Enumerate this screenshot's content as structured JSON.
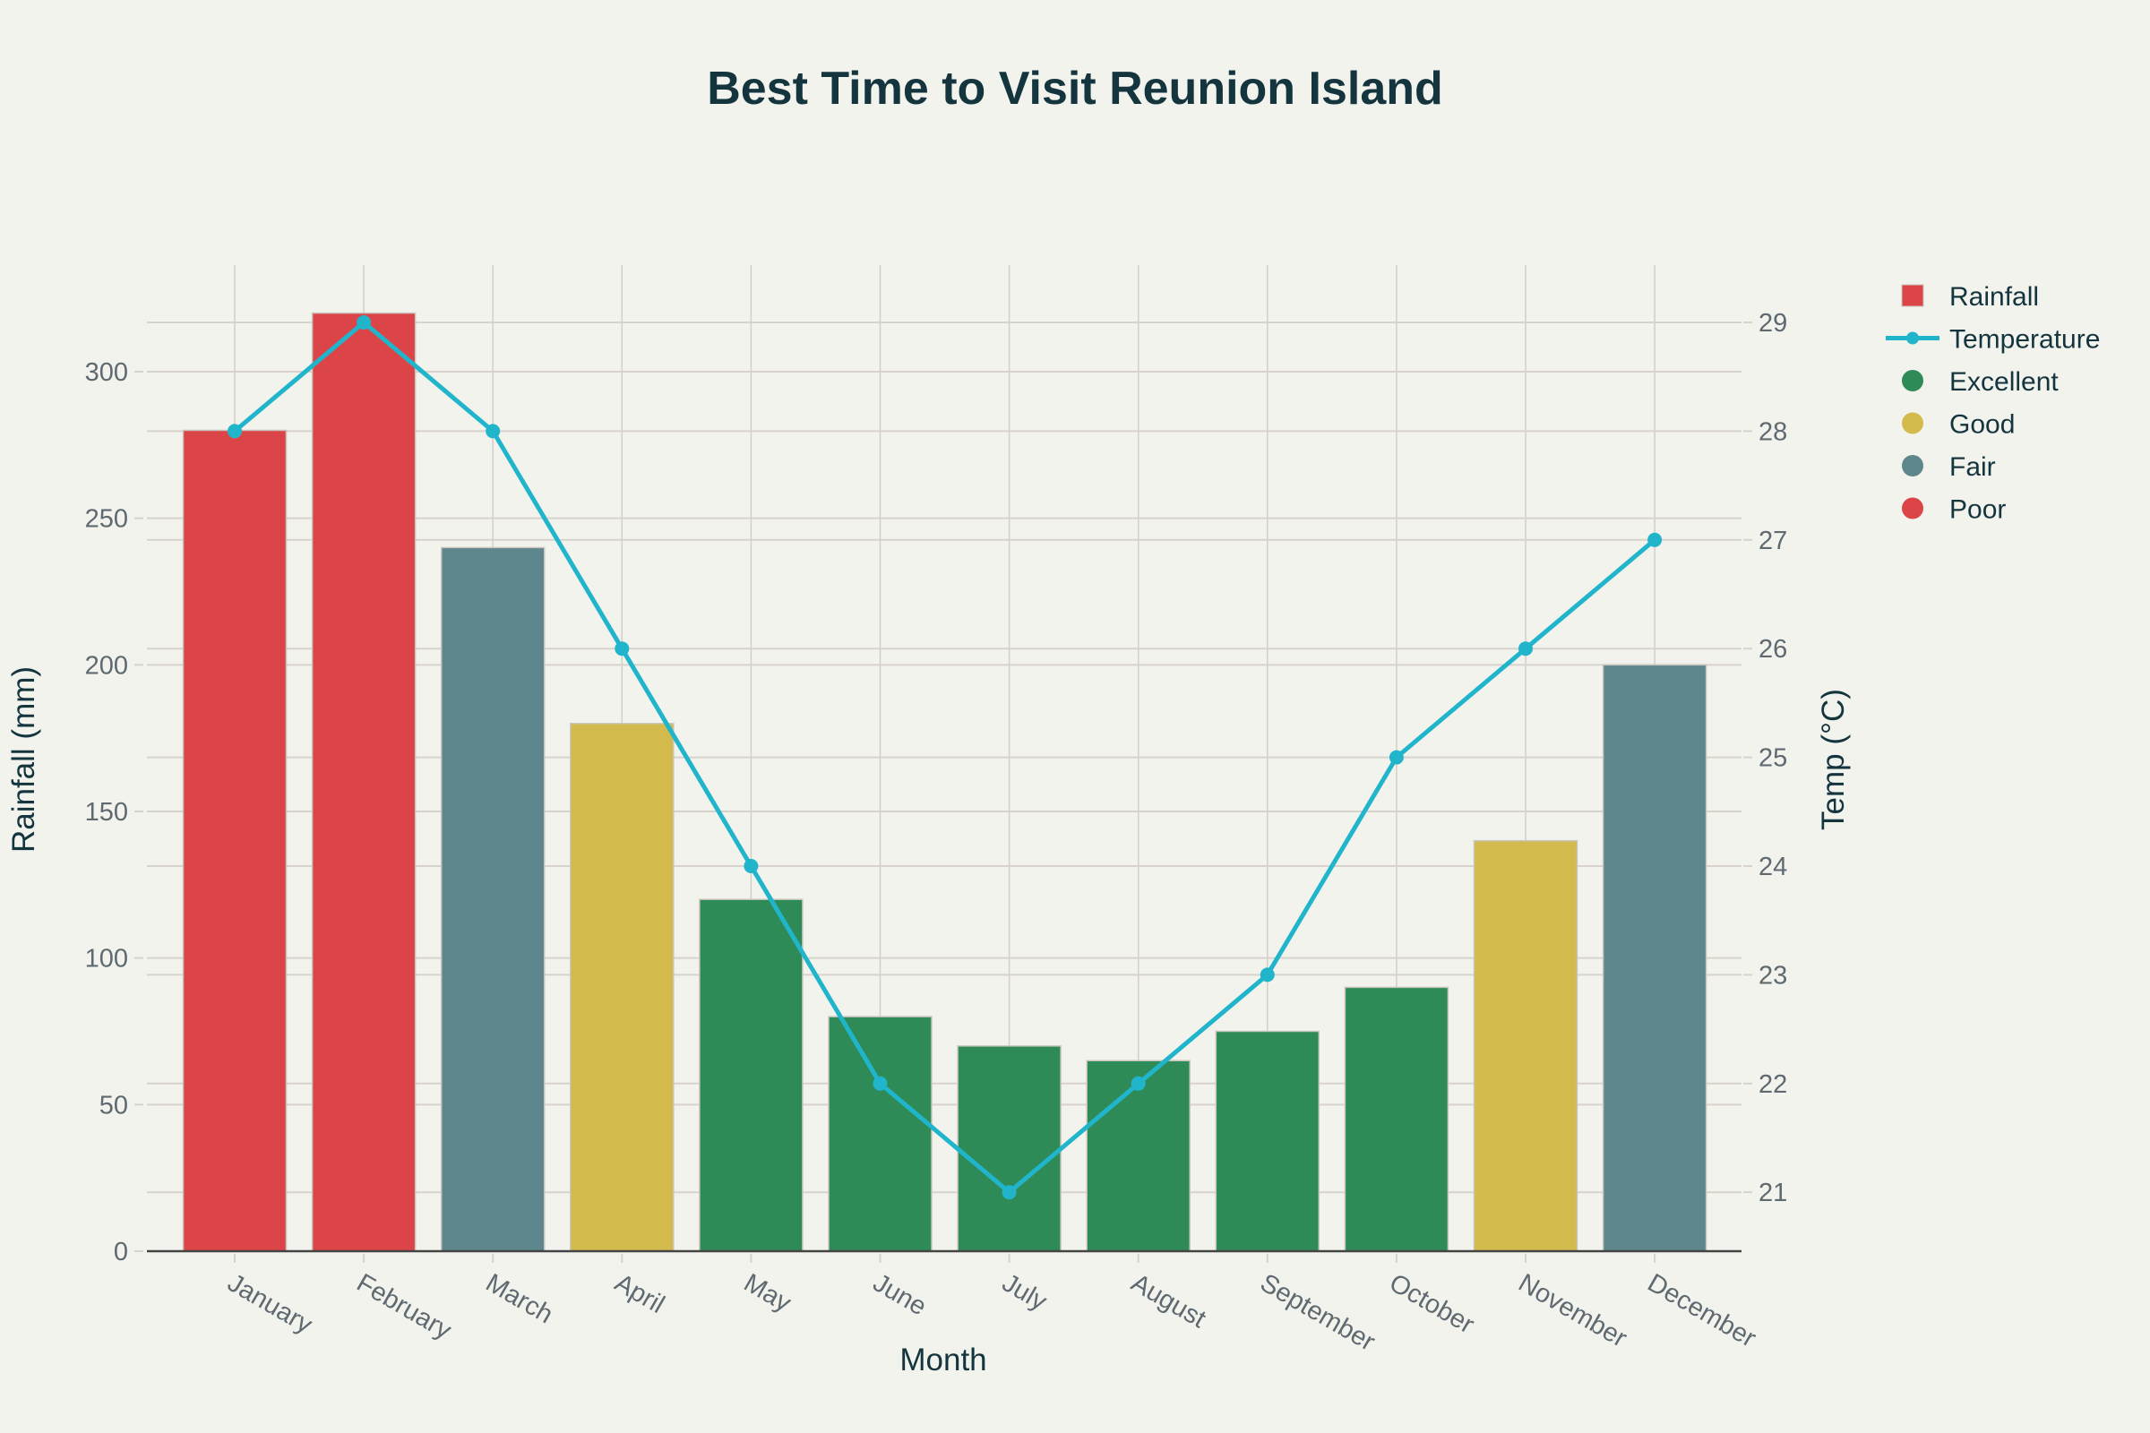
{
  "chart_data": {
    "type": "bar+line",
    "title": "Best Time to Visit Reunion Island",
    "xlabel": "Month",
    "ylabel": "Rainfall (mm)",
    "y2label": "Temp (°C)",
    "categories": [
      "January",
      "February",
      "March",
      "April",
      "May",
      "June",
      "July",
      "August",
      "September",
      "October",
      "November",
      "December"
    ],
    "series": [
      {
        "name": "Rainfall",
        "type": "bar",
        "axis": "y",
        "values": [
          280,
          320,
          240,
          180,
          120,
          80,
          70,
          65,
          75,
          90,
          140,
          200
        ]
      },
      {
        "name": "Temperature",
        "type": "line",
        "axis": "y2",
        "values": [
          28,
          29,
          28,
          26,
          24,
          22,
          21,
          22,
          23,
          25,
          26,
          27
        ],
        "color": "#21b5cc"
      }
    ],
    "rating": [
      "Poor",
      "Poor",
      "Fair",
      "Good",
      "Excellent",
      "Excellent",
      "Excellent",
      "Excellent",
      "Excellent",
      "Excellent",
      "Good",
      "Fair"
    ],
    "rating_colors": {
      "Excellent": "#2e8b57",
      "Good": "#d2ba4c",
      "Fair": "#5e868d",
      "Poor": "#db4547"
    },
    "ylim": [
      0,
      330
    ],
    "y_ticks": [
      0,
      50,
      100,
      150,
      200,
      250,
      300
    ],
    "y2lim": [
      20.5,
      29.5
    ],
    "y2_ticks": [
      21,
      22,
      23,
      24,
      25,
      26,
      27,
      28,
      29
    ],
    "grid": true,
    "legend_position": "right",
    "legend": [
      {
        "label": "Rainfall",
        "symbol": "square",
        "color": "#db4547"
      },
      {
        "label": "Temperature",
        "symbol": "line-marker",
        "color": "#21b5cc"
      },
      {
        "label": "Excellent",
        "symbol": "circle",
        "color": "#2e8b57"
      },
      {
        "label": "Good",
        "symbol": "circle",
        "color": "#d2ba4c"
      },
      {
        "label": "Fair",
        "symbol": "circle",
        "color": "#5e868d"
      },
      {
        "label": "Poor",
        "symbol": "circle",
        "color": "#db4547"
      }
    ]
  }
}
